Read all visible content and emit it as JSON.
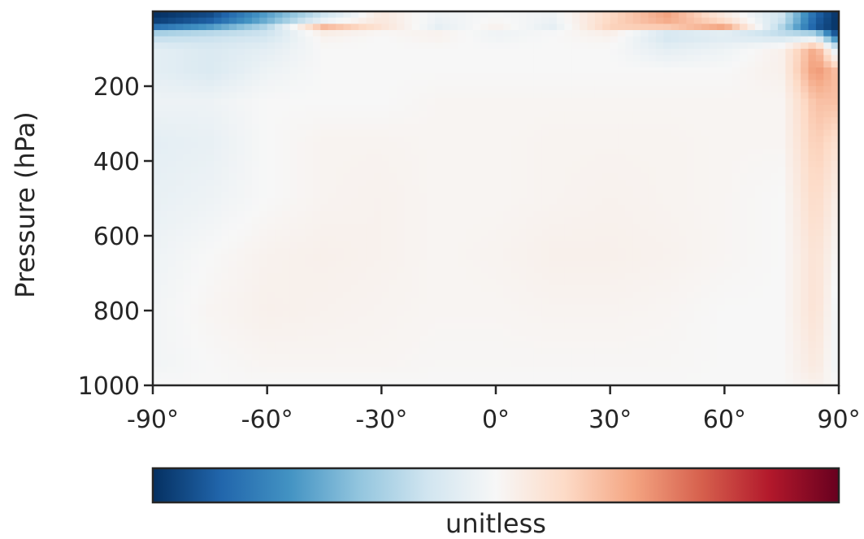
{
  "chart_data": {
    "type": "heatmap",
    "title": "",
    "xlabel": "",
    "ylabel": "Pressure (hPa)",
    "x_ticks": [
      {
        "value": -90,
        "label": "-90°"
      },
      {
        "value": -60,
        "label": "-60°"
      },
      {
        "value": -30,
        "label": "-30°"
      },
      {
        "value": 0,
        "label": "0°"
      },
      {
        "value": 30,
        "label": "30°"
      },
      {
        "value": 60,
        "label": "60°"
      },
      {
        "value": 90,
        "label": "90°"
      }
    ],
    "y_ticks": [
      {
        "value": 200,
        "label": "200"
      },
      {
        "value": 400,
        "label": "400"
      },
      {
        "value": 600,
        "label": "600"
      },
      {
        "value": 800,
        "label": "800"
      },
      {
        "value": 1000,
        "label": "1000"
      }
    ],
    "xlim": [
      -90,
      90
    ],
    "ylim": [
      1000,
      0
    ],
    "y_inverted": true,
    "grid": false,
    "colormap": "RdBu_r",
    "colormap_stops": [
      "#053061",
      "#2166ac",
      "#4393c3",
      "#92c5de",
      "#d1e5f0",
      "#f7f7f7",
      "#fddbc7",
      "#f4a582",
      "#d6604d",
      "#b2182b",
      "#67001f"
    ],
    "colorbar": {
      "orientation": "horizontal",
      "label": "unitless"
    },
    "missing_color": "#808080",
    "field_sketch": {
      "x_nodes": [
        -90,
        -75,
        -60,
        -45,
        -30,
        -15,
        0,
        15,
        30,
        45,
        60,
        75,
        84,
        90
      ],
      "y_nodes": [
        20,
        40,
        60,
        100,
        160,
        240,
        350,
        500,
        650,
        800,
        950,
        1000
      ],
      "values": [
        [
          -1.0,
          -0.9,
          -0.55,
          -0.2,
          0.1,
          -0.05,
          0.0,
          -0.05,
          0.2,
          0.4,
          0.1,
          -0.2,
          -0.8,
          -1.0
        ],
        [
          -0.8,
          -0.6,
          -0.3,
          0.35,
          0.15,
          -0.1,
          0.05,
          -0.1,
          0.25,
          0.3,
          0.45,
          -0.3,
          -0.9,
          -1.0
        ],
        [
          -0.3,
          -0.25,
          -0.2,
          0.05,
          0.0,
          0.05,
          -0.05,
          0.0,
          0.05,
          -0.2,
          -0.15,
          -0.25,
          -0.3,
          -0.95
        ],
        [
          -0.1,
          -0.15,
          -0.1,
          0.0,
          0.0,
          0.0,
          0.0,
          0.0,
          0.0,
          -0.1,
          -0.05,
          0.05,
          0.4,
          -0.2
        ],
        [
          -0.1,
          -0.15,
          -0.05,
          0.0,
          0.0,
          0.0,
          0.0,
          0.0,
          0.0,
          0.0,
          0.0,
          0.05,
          0.45,
          0.3
        ],
        [
          -0.05,
          -0.05,
          0.0,
          0.0,
          0.0,
          0.02,
          0.02,
          0.02,
          0.02,
          0.02,
          0.02,
          0.02,
          0.3,
          0.3
        ],
        [
          -0.1,
          -0.08,
          0.0,
          0.03,
          0.03,
          0.02,
          0.02,
          0.03,
          0.03,
          0.03,
          0.02,
          0.02,
          0.25,
          0.15
        ],
        [
          -0.08,
          -0.05,
          0.0,
          0.03,
          0.04,
          0.02,
          0.02,
          0.03,
          0.04,
          0.03,
          0.02,
          0.0,
          0.2,
          0.05
        ],
        [
          -0.05,
          0.0,
          0.04,
          0.05,
          0.04,
          0.02,
          0.03,
          0.05,
          0.05,
          0.04,
          0.02,
          0.0,
          0.15,
          0.0
        ],
        [
          -0.03,
          0.02,
          0.05,
          0.04,
          0.03,
          0.02,
          0.02,
          0.03,
          0.03,
          0.02,
          0.0,
          0.0,
          0.15,
          -0.05
        ],
        [
          -0.03,
          0.0,
          0.02,
          0.02,
          0.02,
          0.01,
          0.01,
          0.01,
          0.01,
          0.01,
          0.0,
          0.0,
          0.1,
          -0.05
        ],
        [
          0.0,
          0.0,
          0.0,
          0.0,
          0.0,
          0.0,
          0.0,
          0.0,
          0.0,
          0.0,
          0.0,
          0.0,
          0.05,
          0.0
        ]
      ]
    }
  }
}
